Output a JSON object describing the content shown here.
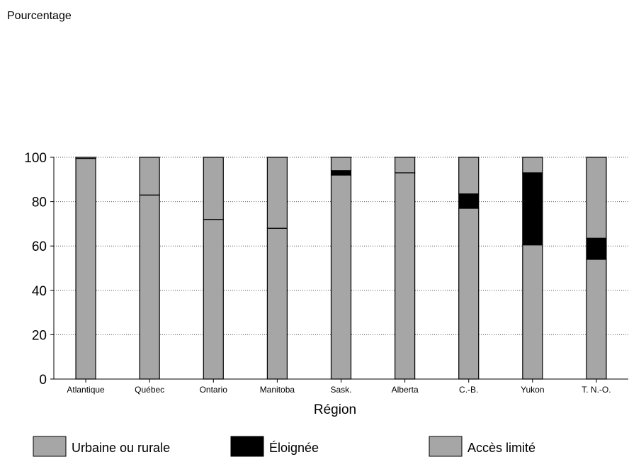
{
  "chart_data": {
    "type": "bar",
    "stacked": true,
    "ylabel": "Pourcentage",
    "xlabel": "Région",
    "ylim": [
      0,
      100
    ],
    "yticks": [
      0,
      20,
      40,
      60,
      80,
      100
    ],
    "grid": true,
    "legend_position": "bottom",
    "categories": [
      "Atlantique",
      "Québec",
      "Ontario",
      "Manitoba",
      "Sask.",
      "Alberta",
      "C.-B.",
      "Yukon",
      "T. N.-O."
    ],
    "series": [
      {
        "name": "Urbaine ou rurale",
        "color": "#a6a6a6",
        "values": [
          99.5,
          83,
          72,
          68,
          92,
          93,
          77,
          60.5,
          54
        ]
      },
      {
        "name": "Éloignée",
        "color": "#000000",
        "values": [
          0,
          0,
          0,
          0,
          2,
          0,
          6.5,
          32.5,
          9.5
        ]
      },
      {
        "name": "Accès limité",
        "color": "#a6a6a6",
        "values": [
          0.5,
          17,
          28,
          32,
          6,
          7,
          16.5,
          7,
          36.5
        ]
      }
    ]
  }
}
